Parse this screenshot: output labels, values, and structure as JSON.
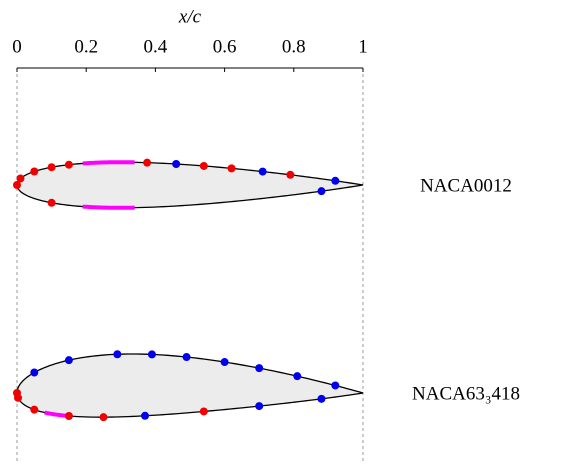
{
  "chart_data": {
    "type": "airfoil",
    "xlabel": "x/c",
    "xlim": [
      0,
      1
    ],
    "xticks": [
      0,
      0.2,
      0.4,
      0.6,
      0.8,
      1
    ],
    "airfoils": [
      {
        "name": "NACA0012",
        "upper": {
          "x": [
            0,
            0.01,
            0.05,
            0.1,
            0.15,
            0.376,
            0.46,
            0.54,
            0.62,
            0.71,
            0.79,
            0.92
          ],
          "colors": [
            "red",
            "red",
            "red",
            "red",
            "red",
            "red",
            "blue",
            "red",
            "red",
            "blue",
            "red",
            "blue"
          ]
        },
        "lower": {
          "x": [
            0.1,
            0.88
          ],
          "colors": [
            "red",
            "blue"
          ]
        },
        "highlights": [
          {
            "surface": "upper",
            "x": [
              0.19,
              0.34
            ]
          },
          {
            "surface": "lower",
            "x": [
              0.19,
              0.34
            ]
          }
        ]
      },
      {
        "name": "NACA63₃418",
        "upper": {
          "x": [
            0,
            0.05,
            0.15,
            0.29,
            0.39,
            0.49,
            0.6,
            0.7,
            0.81,
            0.92
          ],
          "colors": [
            "red",
            "blue",
            "blue",
            "blue",
            "blue",
            "blue",
            "blue",
            "blue",
            "blue",
            "blue"
          ]
        },
        "lower": {
          "x": [
            0.003,
            0.05,
            0.15,
            0.25,
            0.37,
            0.54,
            0.7,
            0.88
          ],
          "colors": [
            "red",
            "red",
            "red",
            "red",
            "blue",
            "red",
            "blue",
            "blue"
          ]
        },
        "highlights": [
          {
            "surface": "lower",
            "x": [
              0.08,
              0.15
            ]
          }
        ]
      }
    ],
    "highlight_color": "magenta"
  }
}
